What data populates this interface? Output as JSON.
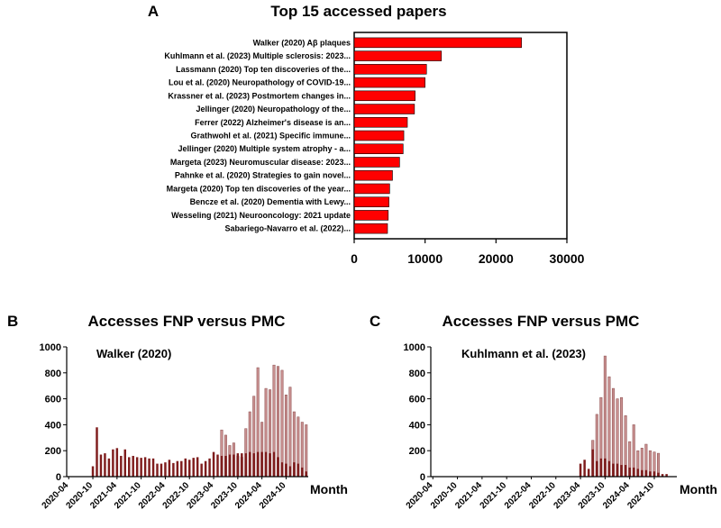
{
  "chart_data": [
    {
      "panel": "A",
      "type": "bar",
      "orientation": "horizontal",
      "title": "Top 15 accessed papers",
      "categories": [
        "Walker (2020) Aβ plaques",
        "Kuhlmann et al. (2023) Multiple sclerosis: 2023...",
        "Lassmann (2020) Top ten discoveries of the...",
        "Lou et al. (2020) Neuropathology of COVID-19...",
        "Krassner et al. (2023) Postmortem changes in...",
        "Jellinger (2020) Neuropathology of the...",
        "Ferrer (2022) Alzheimer's disease is an...",
        "Grathwohl et al. (2021) Specific immune...",
        "Jellinger (2020) Multiple system atrophy - a...",
        "Margeta (2023) Neuromuscular disease: 2023...",
        "Pahnke et al. (2020) Strategies to gain novel...",
        "Margeta (2020) Top ten discoveries of the year...",
        "Bencze et al. (2020) Dementia with Lewy...",
        "Wesseling (2021) Neurooncology: 2021 update",
        "Sabariego-Navarro et al. (2022)..."
      ],
      "values": [
        23600,
        12300,
        10200,
        10000,
        8600,
        8500,
        7500,
        7000,
        6900,
        6400,
        5400,
        5000,
        4900,
        4800,
        4700
      ],
      "xlim": [
        0,
        30000
      ],
      "xticks": [
        "0",
        "10000",
        "20000",
        "30000"
      ],
      "bar_color": "#ff0000"
    },
    {
      "panel": "B",
      "type": "bar",
      "title": "Accesses FNP versus PMC",
      "annotation": "Walker (2020)",
      "xlabel": "Month",
      "ylim": [
        0,
        1000
      ],
      "yticks": [
        "0",
        "200",
        "400",
        "600",
        "800",
        "1000"
      ],
      "xticks": [
        "2020-04",
        "2020-10",
        "2021-04",
        "2021-10",
        "2022-04",
        "2022-10",
        "2023-04",
        "2023-10",
        "2024-04",
        "2024-10"
      ],
      "start_month_index": 6,
      "series": [
        {
          "name": "FNP",
          "color": "#7f1d1d",
          "values": [
            80,
            380,
            170,
            180,
            140,
            210,
            220,
            160,
            210,
            150,
            160,
            150,
            145,
            150,
            140,
            140,
            100,
            100,
            110,
            130,
            105,
            120,
            120,
            140,
            130,
            145,
            150,
            100,
            120,
            140,
            190,
            170,
            160,
            160,
            170,
            170,
            180,
            180,
            180,
            190,
            180,
            190,
            190,
            190,
            180,
            190,
            150,
            110,
            100,
            80,
            110,
            100,
            70,
            40
          ]
        },
        {
          "name": "PMC",
          "color": "#c89090",
          "values": [
            0,
            0,
            0,
            0,
            0,
            0,
            0,
            0,
            0,
            0,
            0,
            0,
            0,
            0,
            0,
            0,
            0,
            0,
            0,
            0,
            0,
            0,
            0,
            0,
            0,
            0,
            0,
            0,
            0,
            0,
            0,
            0,
            360,
            320,
            240,
            260,
            160,
            150,
            370,
            500,
            620,
            840,
            420,
            680,
            670,
            860,
            850,
            820,
            630,
            690,
            500,
            460,
            420,
            400
          ]
        }
      ]
    },
    {
      "panel": "C",
      "type": "bar",
      "title": "Accesses FNP versus PMC",
      "annotation": "Kuhlmann et al. (2023)",
      "xlabel": "Month",
      "ylim": [
        0,
        1000
      ],
      "yticks": [
        "0",
        "200",
        "400",
        "600",
        "800",
        "1000"
      ],
      "xticks": [
        "2020-04",
        "2020-10",
        "2021-04",
        "2021-10",
        "2022-04",
        "2022-10",
        "2023-04",
        "2023-10",
        "2024-04",
        "2024-10"
      ],
      "start_month_index": 36,
      "series": [
        {
          "name": "FNP",
          "color": "#7f1d1d",
          "values": [
            100,
            130,
            60,
            210,
            120,
            140,
            140,
            120,
            100,
            100,
            90,
            90,
            70,
            70,
            60,
            50,
            50,
            40,
            40,
            30,
            20,
            20
          ]
        },
        {
          "name": "PMC",
          "color": "#c89090",
          "values": [
            0,
            0,
            0,
            280,
            480,
            610,
            930,
            770,
            680,
            600,
            610,
            470,
            270,
            400,
            200,
            220,
            250,
            200,
            190,
            180,
            0,
            0
          ]
        }
      ]
    }
  ]
}
